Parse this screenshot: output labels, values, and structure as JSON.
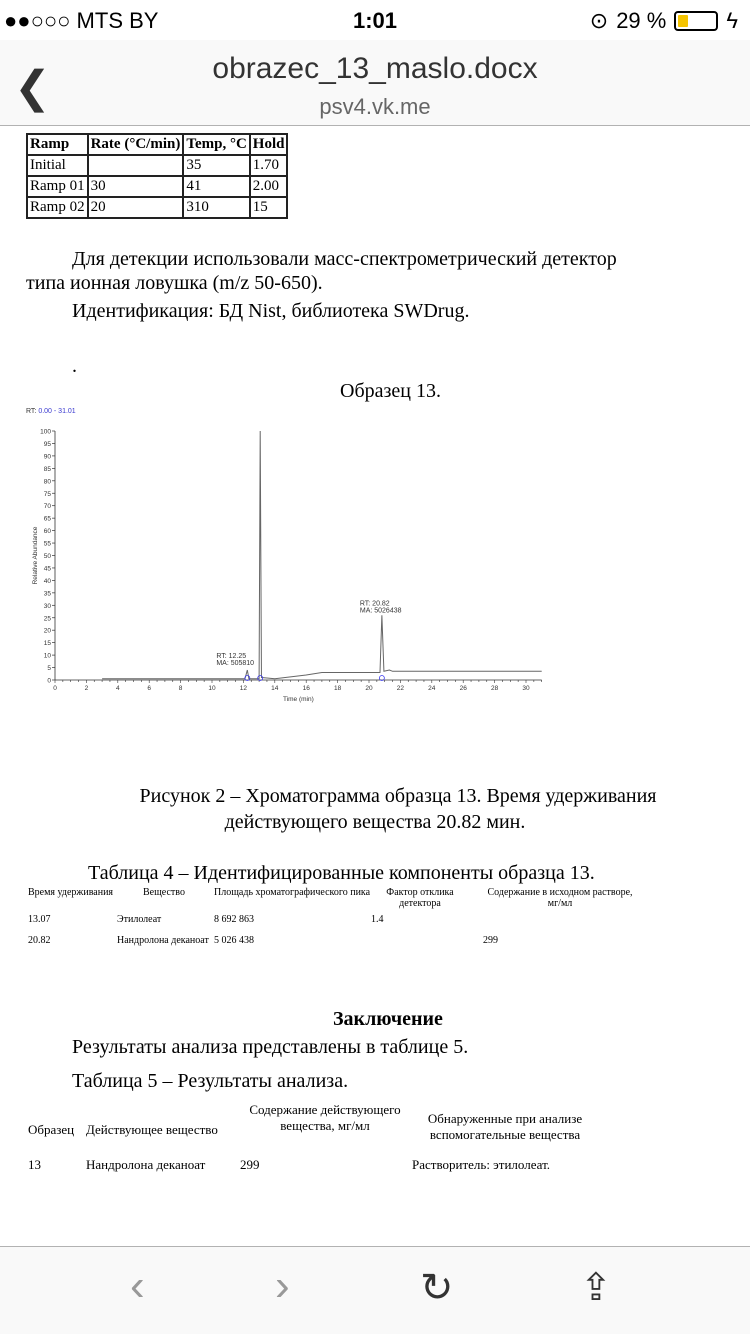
{
  "status": {
    "carrier": "●●○○○ MTS BY",
    "time": "1:01",
    "battery": "29 %",
    "battery_level": 0.29
  },
  "nav": {
    "title": "obrazec_13_maslo.docx",
    "host": "psv4.vk.me",
    "back_icon": "chevron-left-icon"
  },
  "ramp_table": {
    "headers": [
      "Ramp",
      "Rate (°C/min)",
      "Temp, °C",
      "Hold"
    ],
    "rows": [
      [
        "Initial",
        "",
        "35",
        "1.70"
      ],
      [
        "Ramp 01",
        "30",
        "41",
        "2.00"
      ],
      [
        "Ramp 02",
        "20",
        "310",
        "15"
      ]
    ]
  },
  "text": {
    "p1a": "Для детекции использовали масс-спектрометрический детектор",
    "p1b": "типа ионная ловушка (m/z 50-650).",
    "p2": "Идентификация: БД Nist, библиотека SWDrug.",
    "dot": ".",
    "sample": "Образец 13.",
    "fig_a": "Рисунок 2 – Хроматограмма образца 13. Время удерживания",
    "fig_b": "действующего вещества 20.82 мин.",
    "table4_title": "Таблица 4 – Идентифицированные компоненты образца 13.",
    "concl": "Заключение",
    "concl_text": "Результаты анализа представлены в таблице 5.",
    "table5_title": "Таблица 5 – Результаты анализа."
  },
  "chart_data": {
    "type": "line",
    "rt_label": "RT: ",
    "rt_range": "0.00 - 31.01",
    "xlabel": "Time (min)",
    "ylabel": "Relative Abundance",
    "xlim": [
      0,
      31
    ],
    "ylim": [
      0,
      100
    ],
    "xticks": [
      0,
      2,
      4,
      6,
      8,
      10,
      12,
      14,
      16,
      18,
      20,
      22,
      24,
      26,
      28,
      30
    ],
    "yticks": [
      0,
      5,
      10,
      15,
      20,
      25,
      30,
      35,
      40,
      45,
      50,
      55,
      60,
      65,
      70,
      75,
      80,
      85,
      90,
      95,
      100
    ],
    "x": [
      3,
      12.1,
      12.25,
      12.35,
      13.0,
      13.07,
      13.15,
      13.5,
      14,
      16,
      17,
      20.7,
      20.82,
      20.95,
      21.3,
      21.5,
      31
    ],
    "y": [
      0.5,
      0.5,
      4,
      0.5,
      0.5,
      100,
      1,
      0.8,
      0.5,
      2,
      3,
      3,
      26,
      3.5,
      4,
      3.5,
      3.5
    ],
    "annotations": [
      {
        "rt": "RT: 12.25",
        "ma": "MA: 505810",
        "x": 12.25,
        "y": 4
      },
      {
        "rt": "RT: 20.82",
        "ma": "MA: 5026438",
        "x": 20.82,
        "y": 26
      }
    ]
  },
  "table4": {
    "headers": [
      "Время удерживания",
      "Вещество",
      "Площадь хроматографического пика",
      "Фактор отклика детектора",
      "Содержание в исходном растворе, мг/мл"
    ],
    "rows": [
      [
        "13.07",
        "Этилолеат",
        "8 692 863",
        "1.4",
        ""
      ],
      [
        "20.82",
        "Нандролона деканоат",
        "5 026 438",
        "",
        "299"
      ]
    ]
  },
  "table5": {
    "headers": [
      "Образец",
      "Действующее вещество",
      "Содержание действующего вещества, мг/мл",
      "Обнаруженные при анализе вспомогательные вещества"
    ],
    "rows": [
      [
        "13",
        "Нандролона деканоат",
        "299",
        "Растворитель: этилолеат."
      ]
    ]
  },
  "toolbar": {
    "back": "‹",
    "forward": "›",
    "reload": "↻",
    "share": "⇪"
  }
}
